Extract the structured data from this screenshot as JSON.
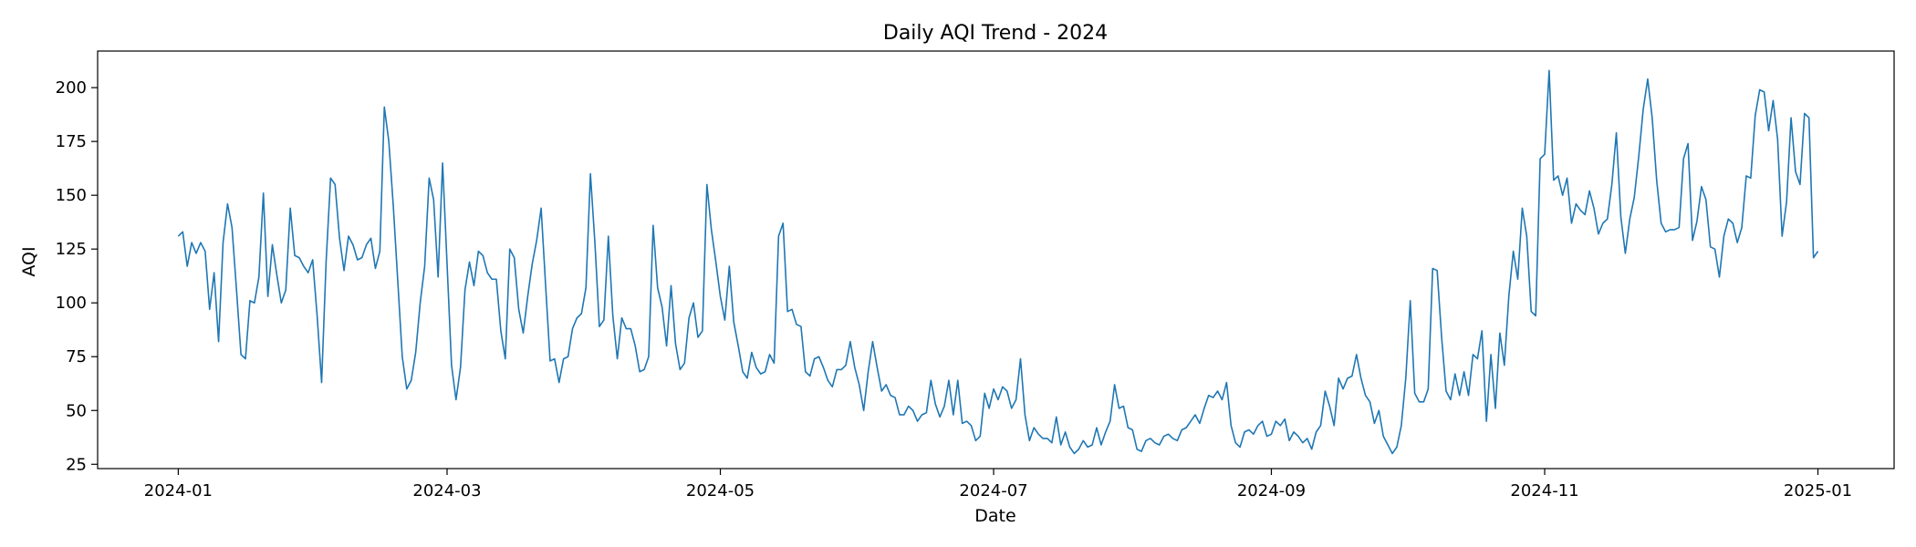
{
  "chart_data": {
    "type": "line",
    "title": "Daily AQI Trend - 2024",
    "xlabel": "Date",
    "ylabel": "AQI",
    "x_start": "2024-01-01",
    "x_end": "2024-12-31",
    "xlim": [
      "2023-12-14",
      "2025-01-18"
    ],
    "ylim": [
      23,
      217
    ],
    "x_ticks": [
      "2024-01",
      "2024-03",
      "2024-05",
      "2024-07",
      "2024-09",
      "2024-11",
      "2025-01"
    ],
    "y_ticks": [
      25,
      50,
      75,
      100,
      125,
      150,
      175,
      200
    ],
    "grid": false,
    "series": [
      {
        "color": "#1f77b4",
        "values": [
          131,
          133,
          117,
          128,
          123,
          128,
          124,
          97,
          114,
          82,
          128,
          146,
          135,
          106,
          76,
          74,
          101,
          100,
          112,
          151,
          103,
          127,
          113,
          100,
          106,
          144,
          122,
          121,
          117,
          114,
          120,
          94,
          63,
          119,
          158,
          155,
          130,
          115,
          131,
          127,
          120,
          121,
          127,
          130,
          116,
          124,
          191,
          175,
          145,
          110,
          75,
          60,
          64,
          77,
          100,
          117,
          158,
          148,
          112,
          165,
          118,
          71,
          55,
          70,
          106,
          119,
          108,
          124,
          122,
          114,
          111,
          111,
          87,
          74,
          125,
          121,
          97,
          86,
          103,
          118,
          129,
          144,
          108,
          73,
          74,
          63,
          74,
          75,
          88,
          93,
          95,
          107,
          160,
          128,
          89,
          92,
          131,
          94,
          74,
          93,
          88,
          88,
          80,
          68,
          69,
          75,
          136,
          107,
          98,
          80,
          108,
          81,
          69,
          72,
          93,
          100,
          84,
          87,
          155,
          134,
          119,
          103,
          92,
          117,
          91,
          80,
          68,
          65,
          77,
          70,
          67,
          68,
          76,
          72,
          131,
          137,
          96,
          97,
          90,
          89,
          68,
          66,
          74,
          75,
          70,
          64,
          61,
          69,
          69,
          71,
          82,
          70,
          62,
          50,
          68,
          82,
          70,
          59,
          62,
          57,
          56,
          48,
          48,
          52,
          50,
          45,
          48,
          49,
          64,
          53,
          47,
          52,
          64,
          48,
          64,
          44,
          45,
          43,
          36,
          38,
          58,
          51,
          60,
          55,
          61,
          59,
          51,
          55,
          74,
          48,
          36,
          42,
          39,
          37,
          37,
          35,
          47,
          34,
          40,
          33,
          30,
          32,
          36,
          33,
          34,
          42,
          34,
          40,
          45,
          62,
          51,
          52,
          42,
          41,
          32,
          31,
          36,
          37,
          35,
          34,
          38,
          39,
          37,
          36,
          41,
          42,
          45,
          48,
          44,
          51,
          57,
          56,
          59,
          55,
          63,
          43,
          35,
          33,
          40,
          41,
          39,
          43,
          45,
          38,
          39,
          45,
          43,
          46,
          36,
          40,
          38,
          35,
          37,
          32,
          40,
          43,
          59,
          52,
          43,
          65,
          60,
          65,
          66,
          76,
          65,
          57,
          54,
          44,
          50,
          38,
          34,
          30,
          33,
          43,
          65,
          101,
          58,
          54,
          54,
          60,
          116,
          115,
          84,
          59,
          55,
          67,
          57,
          68,
          57,
          76,
          74,
          87,
          45,
          76,
          51,
          86,
          71,
          103,
          124,
          111,
          144,
          131,
          96,
          94,
          167,
          169,
          208,
          157,
          159,
          150,
          158,
          137,
          146,
          143,
          141,
          152,
          144,
          132,
          137,
          139,
          155,
          179,
          140,
          123,
          139,
          149,
          168,
          190,
          204,
          186,
          157,
          137,
          133,
          134,
          134,
          135,
          167,
          174,
          129,
          138,
          154,
          148,
          126,
          125,
          112,
          131,
          139,
          137,
          128,
          135,
          159,
          158,
          187,
          199,
          198,
          180,
          194,
          176,
          131,
          147,
          186,
          161,
          155,
          188,
          186,
          121,
          124
        ]
      }
    ]
  }
}
